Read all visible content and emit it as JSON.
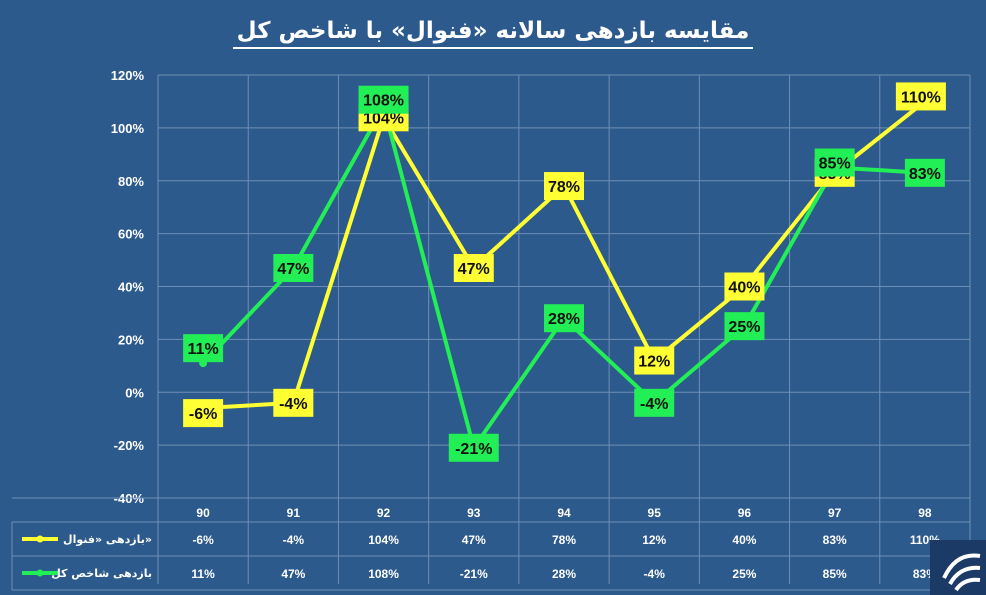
{
  "title": "مقایسه بازدهی سالانه «فنوال» با شاخص کل",
  "colors": {
    "background": "#2d5a8c",
    "fanval": "#ffff33",
    "index": "#22ee55",
    "grid": "#6e8fb5"
  },
  "logo_icon": "news-agency-logo-icon",
  "chart_data": {
    "type": "line",
    "categories": [
      "90",
      "91",
      "92",
      "93",
      "94",
      "95",
      "96",
      "97",
      "98"
    ],
    "ylim": [
      -40,
      120
    ],
    "yticks": [
      -40,
      -20,
      0,
      20,
      40,
      60,
      80,
      100,
      120
    ],
    "ytick_labels": [
      "-40%",
      "-20%",
      "0%",
      "20%",
      "40%",
      "60%",
      "80%",
      "100%",
      "120%"
    ],
    "grid": true,
    "legend": "data-table",
    "series": [
      {
        "name": "بازدهی «فنوال»",
        "color": "#ffff33",
        "values": [
          -6,
          -4,
          104,
          47,
          78,
          12,
          40,
          83,
          110
        ],
        "labels": [
          "-6%",
          "-4%",
          "104%",
          "47%",
          "78%",
          "12%",
          "40%",
          "83%",
          "110%"
        ]
      },
      {
        "name": "بازدهی شاخص کل",
        "color": "#22ee55",
        "values": [
          11,
          47,
          108,
          -21,
          28,
          -4,
          25,
          85,
          83
        ],
        "labels": [
          "11%",
          "47%",
          "108%",
          "-21%",
          "28%",
          "-4%",
          "25%",
          "85%",
          "83%"
        ]
      }
    ]
  }
}
